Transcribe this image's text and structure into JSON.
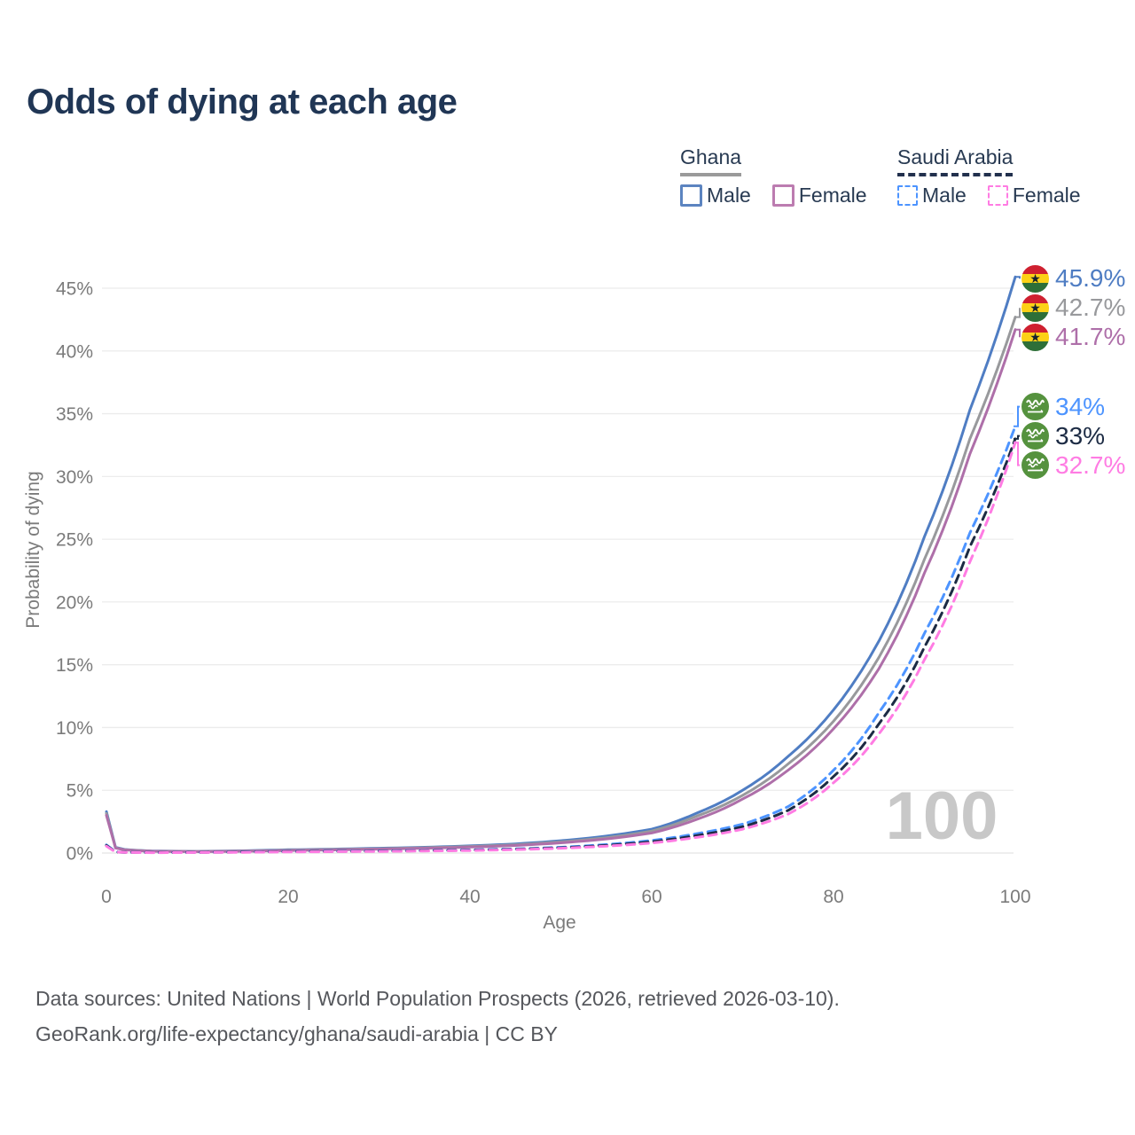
{
  "title": "Odds of dying at each age",
  "watermark": "100",
  "colors": {
    "title_text": "#203655",
    "legend_text": "#283a52",
    "axis_text": "#7b7b7b",
    "grid": "#ececec",
    "grid_zero": "#e3e3e3",
    "watermark": "#c8c8c8",
    "footer_text": "#55575c",
    "ghana_male": "#4f7dc3",
    "ghana_both": "#98999c",
    "ghana_female": "#ae6fa9",
    "saudi_male": "#4d94ff",
    "saudi_both": "#1c2b44",
    "saudi_female": "#ff7ce3",
    "ghana_underline": "#9a9a9a",
    "saudi_underline": "#22304d"
  },
  "legend": {
    "groups": [
      {
        "country": "Ghana",
        "line_style": "solid",
        "items": [
          {
            "label": "Male",
            "color_key": "ghana_male"
          },
          {
            "label": "Female",
            "color_key": "ghana_female"
          }
        ]
      },
      {
        "country": "Saudi Arabia",
        "line_style": "dashed",
        "items": [
          {
            "label": "Male",
            "color_key": "saudi_male"
          },
          {
            "label": "Female",
            "color_key": "saudi_female"
          }
        ]
      }
    ]
  },
  "chart_data": {
    "type": "line",
    "title": "Odds of dying at each age",
    "xlabel": "Age",
    "ylabel": "Probability of dying",
    "xlim": [
      0,
      100
    ],
    "ylim_percent": [
      0,
      46
    ],
    "x_ticks": [
      0,
      20,
      40,
      60,
      80,
      100
    ],
    "y_ticks_percent": [
      0,
      5,
      10,
      15,
      20,
      25,
      30,
      35,
      40,
      45
    ],
    "grid": "horizontal",
    "legend_position": "top-right",
    "hover_age_indicator": "100",
    "x": [
      0,
      1,
      2,
      5,
      10,
      15,
      20,
      25,
      30,
      35,
      40,
      45,
      50,
      55,
      60,
      65,
      70,
      75,
      80,
      85,
      90,
      95,
      100
    ],
    "series": [
      {
        "name": "Ghana Male",
        "country": "Ghana",
        "sex": "Male",
        "style": "solid",
        "color_key": "ghana_male",
        "flag": "ghana",
        "end_label": "45.9%",
        "values_percent": [
          3.3,
          0.45,
          0.28,
          0.16,
          0.13,
          0.18,
          0.26,
          0.31,
          0.38,
          0.46,
          0.57,
          0.73,
          0.98,
          1.35,
          1.9,
          3.2,
          5.0,
          7.7,
          11.4,
          16.9,
          25.2,
          35.3,
          45.9
        ]
      },
      {
        "name": "Ghana Both sexes",
        "country": "Ghana",
        "sex": "Both",
        "style": "solid",
        "color_key": "ghana_both",
        "flag": "ghana",
        "end_label": "42.7%",
        "values_percent": [
          3.15,
          0.42,
          0.26,
          0.15,
          0.12,
          0.16,
          0.23,
          0.28,
          0.34,
          0.42,
          0.52,
          0.66,
          0.89,
          1.22,
          1.75,
          2.95,
          4.6,
          7.1,
          10.5,
          15.6,
          23.4,
          33.0,
          42.7
        ]
      },
      {
        "name": "Ghana Female",
        "country": "Ghana",
        "sex": "Female",
        "style": "solid",
        "color_key": "ghana_female",
        "flag": "ghana",
        "end_label": "41.7%",
        "values_percent": [
          3.0,
          0.4,
          0.25,
          0.14,
          0.11,
          0.14,
          0.2,
          0.25,
          0.31,
          0.38,
          0.47,
          0.6,
          0.81,
          1.12,
          1.6,
          2.7,
          4.3,
          6.6,
          9.9,
          14.7,
          22.3,
          31.8,
          41.7
        ]
      },
      {
        "name": "Saudi Arabia Male",
        "country": "Saudi Arabia",
        "sex": "Male",
        "style": "dashed",
        "color_key": "saudi_male",
        "flag": "saudi",
        "end_label": "34%",
        "values_percent": [
          0.65,
          0.09,
          0.06,
          0.04,
          0.05,
          0.09,
          0.13,
          0.15,
          0.17,
          0.2,
          0.25,
          0.33,
          0.46,
          0.68,
          1.0,
          1.55,
          2.3,
          3.7,
          6.6,
          11.2,
          17.5,
          25.5,
          34.0
        ]
      },
      {
        "name": "Saudi Arabia Both sexes",
        "country": "Saudi Arabia",
        "sex": "Both",
        "style": "dashed",
        "color_key": "saudi_both",
        "flag": "saudi",
        "end_label": "33%",
        "values_percent": [
          0.6,
          0.08,
          0.05,
          0.04,
          0.05,
          0.08,
          0.11,
          0.13,
          0.15,
          0.18,
          0.22,
          0.3,
          0.42,
          0.61,
          0.9,
          1.4,
          2.1,
          3.4,
          6.1,
          10.3,
          16.4,
          24.4,
          33.0
        ]
      },
      {
        "name": "Saudi Arabia Female",
        "country": "Saudi Arabia",
        "sex": "Female",
        "style": "dashed",
        "color_key": "saudi_female",
        "flag": "saudi",
        "end_label": "32.7%",
        "values_percent": [
          0.55,
          0.08,
          0.05,
          0.03,
          0.04,
          0.06,
          0.09,
          0.11,
          0.13,
          0.16,
          0.2,
          0.27,
          0.38,
          0.55,
          0.8,
          1.25,
          1.9,
          3.1,
          5.6,
          9.5,
          15.4,
          23.2,
          32.7
        ]
      }
    ]
  },
  "footer": {
    "line1": "Data sources: United Nations | World Population Prospects (2026, retrieved 2026-03-10).",
    "line2": "GeoRank.org/life-expectancy/ghana/saudi-arabia | CC BY"
  }
}
